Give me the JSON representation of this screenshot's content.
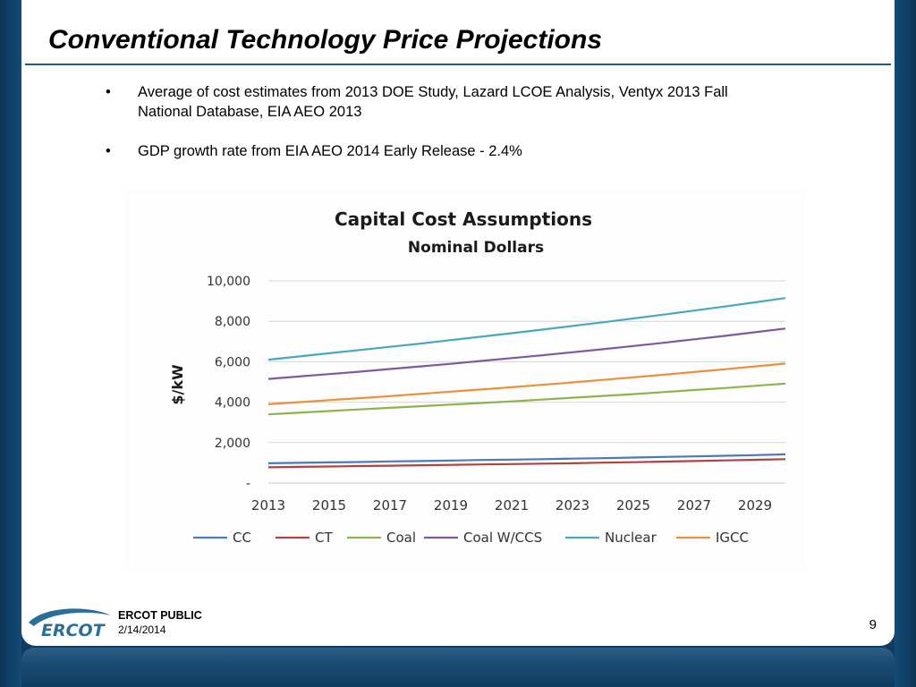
{
  "slide": {
    "title": "Conventional Technology Price Projections",
    "bullets": [
      "Average of cost estimates from 2013 DOE Study, Lazard LCOE Analysis, Ventyx 2013 Fall National Database, EIA AEO 2013",
      "GDP growth rate from EIA AEO 2014 Early Release - 2.4%"
    ],
    "bullet_symbol": "•",
    "footer": {
      "logo_text": "ERCOT",
      "classification": "ERCOT PUBLIC",
      "date": "2/14/2014",
      "page_number": "9"
    }
  },
  "chart_data": {
    "type": "line",
    "title": "Capital Cost Assumptions",
    "subtitle": "Nominal Dollars",
    "ylabel": "$/kW",
    "xlabel": "",
    "ylim": [
      0,
      10000
    ],
    "yticks": [
      0,
      2000,
      4000,
      6000,
      8000,
      10000
    ],
    "ytick_labels": [
      "-",
      "2,000",
      "4,000",
      "6,000",
      "8,000",
      "10,000"
    ],
    "xtick_labels": [
      "2013",
      "2015",
      "2017",
      "2019",
      "2021",
      "2023",
      "2025",
      "2027",
      "2029"
    ],
    "x": [
      2013,
      2014,
      2015,
      2016,
      2017,
      2018,
      2019,
      2020,
      2021,
      2022,
      2023,
      2024,
      2025,
      2026,
      2027,
      2028,
      2029,
      2030
    ],
    "grid": "horizontal",
    "legend_position": "bottom",
    "series": [
      {
        "name": "CC",
        "color": "#4a7ab8",
        "values": [
          980,
          1000,
          1020,
          1040,
          1070,
          1090,
          1110,
          1140,
          1160,
          1180,
          1210,
          1230,
          1260,
          1290,
          1320,
          1350,
          1380,
          1420
        ]
      },
      {
        "name": "CT",
        "color": "#b04340",
        "values": [
          780,
          800,
          820,
          840,
          860,
          880,
          900,
          920,
          940,
          960,
          980,
          1010,
          1030,
          1060,
          1090,
          1120,
          1150,
          1180
        ]
      },
      {
        "name": "Coal",
        "color": "#8fb24d",
        "values": [
          3400,
          3480,
          3560,
          3640,
          3720,
          3800,
          3880,
          3960,
          4040,
          4130,
          4220,
          4310,
          4400,
          4500,
          4600,
          4700,
          4810,
          4920
        ]
      },
      {
        "name": "Coal W/CCS",
        "color": "#7a5ba0",
        "values": [
          5150,
          5270,
          5390,
          5510,
          5640,
          5770,
          5900,
          6040,
          6180,
          6320,
          6470,
          6620,
          6780,
          6940,
          7110,
          7280,
          7460,
          7640
        ]
      },
      {
        "name": "Nuclear",
        "color": "#4aa8be",
        "values": [
          6100,
          6260,
          6420,
          6580,
          6740,
          6900,
          7070,
          7240,
          7410,
          7590,
          7770,
          7950,
          8140,
          8330,
          8530,
          8730,
          8940,
          9150
        ]
      },
      {
        "name": "IGCC",
        "color": "#e8913a",
        "values": [
          3900,
          4000,
          4100,
          4200,
          4300,
          4410,
          4520,
          4630,
          4740,
          4860,
          4980,
          5100,
          5230,
          5360,
          5490,
          5630,
          5770,
          5910
        ]
      }
    ]
  }
}
